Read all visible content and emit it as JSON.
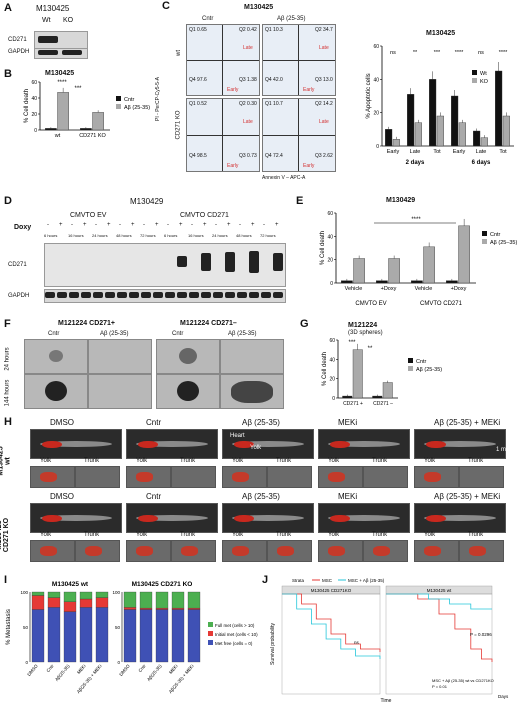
{
  "panels": {
    "A": {
      "letter": "A",
      "sample": "M130425",
      "lanes": [
        "Wt",
        "KO"
      ],
      "rows": [
        "CD271",
        "GAPDH"
      ]
    },
    "B": {
      "letter": "B",
      "sample": "M130425",
      "ylabel": "% Cell death",
      "legend": [
        "Cntr",
        "Aβ (25-35)"
      ],
      "stars": [
        "****",
        "***"
      ]
    },
    "C": {
      "letter": "C",
      "sample": "M130425",
      "cols": [
        "Cntr",
        "Aβ (25-35)"
      ],
      "rows": [
        "wt",
        "CD271 KO"
      ],
      "yaxis": "PI - PerCP-Cy5-5-A",
      "xaxis": "Annexin V – APC-A",
      "facs": [
        {
          "q1": "Q1\n0.65",
          "q2": "Q2\n0.42",
          "q4": "Q4\n97.6",
          "q3": "Q3\n1.38"
        },
        {
          "q1": "Q1\n10.3",
          "q2": "Q2\n34.7",
          "q4": "Q4\n42.0",
          "q3": "Q3\n13.0"
        },
        {
          "q1": "Q1\n0.52",
          "q2": "Q2\n0.30",
          "q4": "Q4\n98.5",
          "q3": "Q3\n0.73"
        },
        {
          "q1": "Q1\n10.7",
          "q2": "Q2\n14.2",
          "q4": "Q4\n72.4",
          "q3": "Q3\n2.62"
        }
      ],
      "late": "Late",
      "early": "Early"
    },
    "C2": {
      "sample": "M130425",
      "ylabel": "% Apoptotic cells",
      "legend": [
        "Wt",
        "KO"
      ],
      "groups": [
        "Early",
        "Late",
        "Tot",
        "Early",
        "Late",
        "Tot"
      ],
      "days": [
        "2 days",
        "6 days"
      ],
      "stars": [
        "ns",
        "**",
        "***",
        "****",
        "ns",
        "****"
      ]
    },
    "D": {
      "letter": "D",
      "sample": "M130429",
      "groups": [
        "CMVTO EV",
        "CMVTO CD271"
      ],
      "doxy": "Doxy",
      "times": [
        "6 hours",
        "16 hours",
        "24 hours",
        "48 hours",
        "72 hours"
      ],
      "rows": [
        "CD271",
        "GAPDH"
      ],
      "signs": [
        "-",
        "+"
      ]
    },
    "E": {
      "letter": "E",
      "sample": "M130429",
      "ylabel": "% Cell death",
      "legend": [
        "Cntr",
        "Aβ (25–35)"
      ],
      "xticks": [
        "Vehicle",
        "+Doxy",
        "Vehicle",
        "+Doxy"
      ],
      "groups": [
        "CMVTO EV",
        "CMVTO CD271"
      ],
      "stars": "****"
    },
    "F": {
      "letter": "F",
      "groups": [
        "M121224 CD271+",
        "M121224 CD271–"
      ],
      "cols": [
        "Cntr",
        "Aβ (25-35)",
        "Cntr",
        "Aβ (25-35)"
      ],
      "rows": [
        "24 hours",
        "144 hours"
      ]
    },
    "G": {
      "letter": "G",
      "sample": "M121224",
      "sub": "(3D spheres)",
      "ylabel": "% Cell death",
      "legend": [
        "Cntr",
        "Aβ (25-35)"
      ],
      "xticks": [
        "CD271 +",
        "CD271 –"
      ],
      "stars": [
        "***",
        "**"
      ]
    },
    "H": {
      "letter": "H",
      "rows": [
        "M130425\nwt",
        "M130425\nCD271 KO"
      ],
      "cols": [
        "DMSO",
        "Cntr",
        "Aβ (25-35)",
        "MEKi",
        "Aβ (25-35) + MEKi"
      ],
      "sub": [
        "Yolk",
        "Trunk"
      ],
      "annot": [
        "Heart",
        "Yolk"
      ],
      "scale": "1 mm"
    },
    "I": {
      "letter": "I",
      "ylabel": "% Metastasis",
      "titles": [
        "M130425 wt",
        "M130425 CD271 KO"
      ],
      "xticks": [
        "DMSO",
        "Cntr",
        "Aβ(25-35)",
        "MEKi",
        "Aβ(25-35) + MEKi"
      ],
      "legend": [
        "Full met (cells > 10)",
        "Initial met (cells < 10)",
        "Met free (cells = 0)"
      ],
      "colors": {
        "full": "#4caf50",
        "initial": "#e53935",
        "free": "#3f51b5"
      }
    },
    "J": {
      "letter": "J",
      "titles": [
        "M130425 CD271KO",
        "M130425 wt"
      ],
      "legend": [
        "Strata",
        "MSC",
        "MSC + Aβ (25-35)"
      ],
      "ylabel": "Survival probability",
      "xlabel": "Time",
      "xunit": "Days",
      "ns": "ns",
      "p1": "P = 0.0296",
      "note": "MSC + Aβ (25-35) wt vs CD271KO",
      "note2": "P = 0.01"
    }
  },
  "chart_data": [
    {
      "type": "bar",
      "panel": "B",
      "categories": [
        "wt",
        "CD271 KO"
      ],
      "ylim": [
        0,
        60
      ],
      "series": [
        {
          "name": "Cntr",
          "values": [
            2,
            2
          ]
        },
        {
          "name": "Aβ (25-35)",
          "values": [
            47,
            22
          ]
        }
      ]
    },
    {
      "type": "bar",
      "panel": "C2",
      "categories": [
        "Early",
        "Late",
        "Tot",
        "Early",
        "Late",
        "Tot"
      ],
      "ylim": [
        0,
        60
      ],
      "series": [
        {
          "name": "Wt",
          "values": [
            10,
            31,
            40,
            30,
            9,
            45
          ]
        },
        {
          "name": "KO",
          "values": [
            4,
            14,
            18,
            14,
            5,
            18
          ]
        }
      ]
    },
    {
      "type": "bar",
      "panel": "E",
      "categories": [
        "Vehicle",
        "+Doxy",
        "Vehicle",
        "+Doxy"
      ],
      "ylim": [
        0,
        60
      ],
      "series": [
        {
          "name": "Cntr",
          "values": [
            2,
            2,
            2,
            2
          ]
        },
        {
          "name": "Aβ (25–35)",
          "values": [
            21,
            21,
            31,
            49
          ]
        }
      ]
    },
    {
      "type": "bar",
      "panel": "G",
      "categories": [
        "CD271 +",
        "CD271 –"
      ],
      "ylim": [
        0,
        60
      ],
      "series": [
        {
          "name": "Cntr",
          "values": [
            2,
            2
          ]
        },
        {
          "name": "Aβ (25-35)",
          "values": [
            50,
            16
          ]
        }
      ]
    },
    {
      "type": "bar",
      "panel": "I",
      "categories": [
        "DMSO",
        "Cntr",
        "Aβ(25-35)",
        "MEKi",
        "Aβ(25-35) + MEKi"
      ],
      "ylim": [
        0,
        100
      ],
      "groups": [
        "M130425 wt",
        "M130425 CD271 KO"
      ],
      "series": [
        {
          "name": "Met free (cells = 0)",
          "values": [
            [
              75,
              78,
              72,
              78,
              78
            ],
            [
              75,
              75,
              75,
              75,
              75
            ]
          ]
        },
        {
          "name": "Initial met (cells < 10)",
          "values": [
            [
              20,
              14,
              14,
              12,
              14
            ],
            [
              3,
              2,
              2,
              2,
              2
            ]
          ]
        },
        {
          "name": "Full met (cells > 10)",
          "values": [
            [
              5,
              8,
              14,
              10,
              8
            ],
            [
              22,
              23,
              23,
              23,
              23
            ]
          ]
        }
      ]
    }
  ]
}
